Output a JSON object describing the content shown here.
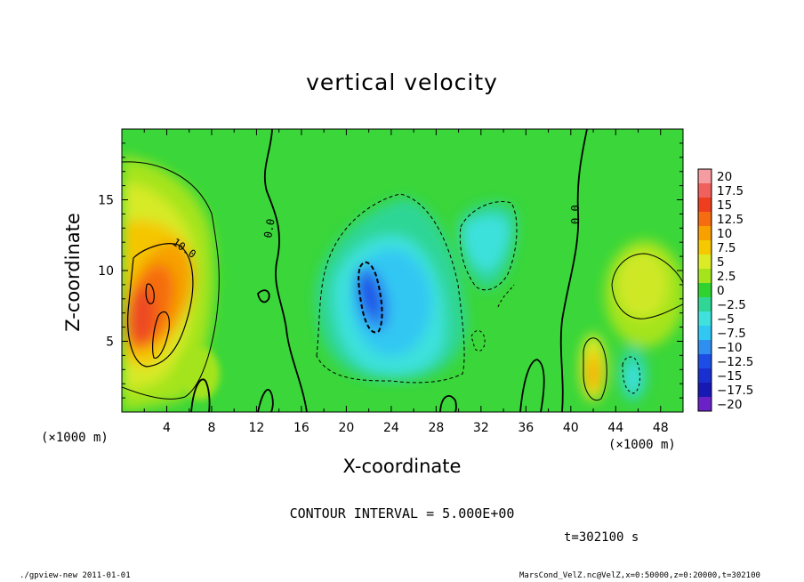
{
  "chart_data": {
    "type": "heatmap",
    "title": "vertical velocity",
    "xlabel": "X-coordinate",
    "ylabel": "Z-coordinate",
    "x_unit_left": "(×1000 m)",
    "x_unit_right": "(×1000 m)",
    "xlim": [
      0,
      50
    ],
    "ylim": [
      0,
      20
    ],
    "x_ticks": [
      4,
      8,
      12,
      16,
      20,
      24,
      28,
      32,
      36,
      40,
      44,
      48
    ],
    "x_tick_labels": [
      "4",
      "8",
      "12",
      "16",
      "20",
      "24",
      "28",
      "32",
      "36",
      "40",
      "44",
      "48"
    ],
    "y_ticks": [
      5,
      10,
      15
    ],
    "y_tick_labels": [
      "5",
      "10",
      "15"
    ],
    "colorbar": {
      "levels": [
        20,
        17.5,
        15,
        12.5,
        10,
        7.5,
        5,
        2.5,
        0,
        -2.5,
        -5,
        -7.5,
        -10,
        -12.5,
        -15,
        -17.5,
        -20
      ],
      "labels": [
        "20",
        "17.5",
        "15",
        "12.5",
        "10",
        "7.5",
        "5",
        "2.5",
        "0",
        "−2.5",
        "−5",
        "−7.5",
        "−10",
        "−12.5",
        "−15",
        "−17.5",
        "−20"
      ],
      "colors": [
        "#f49ca0",
        "#f0605c",
        "#ee3e20",
        "#f56d10",
        "#f7a000",
        "#f6c800",
        "#dceb28",
        "#a5e41c",
        "#2fd22f",
        "#2fd695",
        "#3ee1dc",
        "#30c7f3",
        "#2e8ff0",
        "#1c4ee6",
        "#1a2fd0",
        "#1818b4",
        "#6a22c8"
      ]
    },
    "contour_interval_text": "CONTOUR INTERVAL = 5.000E+00",
    "contour_labels": [
      "0.0",
      "0.0",
      "10.0"
    ],
    "time_text": "t=302100 s",
    "features": [
      {
        "name": "updraft-core",
        "x_center": 3.0,
        "z_center": 8.0,
        "max_value": 12.5
      },
      {
        "name": "downdraft-core",
        "x_center": 22.0,
        "z_center": 8.5,
        "min_value": -12.5
      },
      {
        "name": "weak-downdraft",
        "x_center": 32.5,
        "z_center": 12.0,
        "min_value": -5
      },
      {
        "name": "updraft-small",
        "x_center": 42.0,
        "z_center": 3.0,
        "max_value": 8
      },
      {
        "name": "downdraft-small",
        "x_center": 45.0,
        "z_center": 2.5,
        "min_value": -6
      }
    ]
  },
  "footer": {
    "left": "./gpview-new   2011-01-01",
    "right": "MarsCond_VelZ.nc@VelZ,x=0:50000,z=0:20000,t=302100"
  }
}
